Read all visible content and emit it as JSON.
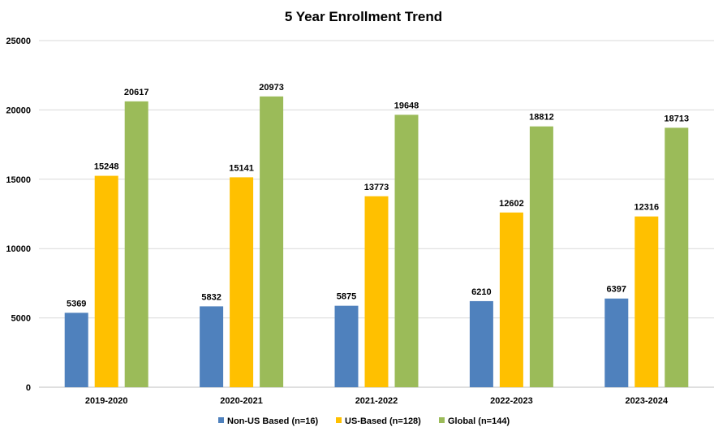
{
  "chart_data": {
    "type": "bar",
    "title": "5 Year Enrollment Trend",
    "xlabel": "",
    "ylabel": "",
    "categories": [
      "2019-2020",
      "2020-2021",
      "2021-2022",
      "2022-2023",
      "2023-2024"
    ],
    "series": [
      {
        "name": "Non-US Based (n=16)",
        "color": "#4f81bd",
        "values": [
          5369,
          5832,
          5875,
          6210,
          6397
        ]
      },
      {
        "name": "US-Based (n=128)",
        "color": "#ffc000",
        "values": [
          15248,
          15141,
          13773,
          12602,
          12316
        ]
      },
      {
        "name": "Global (n=144)",
        "color": "#9bbb59",
        "values": [
          20617,
          20973,
          19648,
          18812,
          18713
        ]
      }
    ],
    "ylim": [
      0,
      25000
    ],
    "yticks": [
      0,
      5000,
      10000,
      15000,
      20000,
      25000
    ],
    "grid": true,
    "legend_position": "bottom"
  }
}
